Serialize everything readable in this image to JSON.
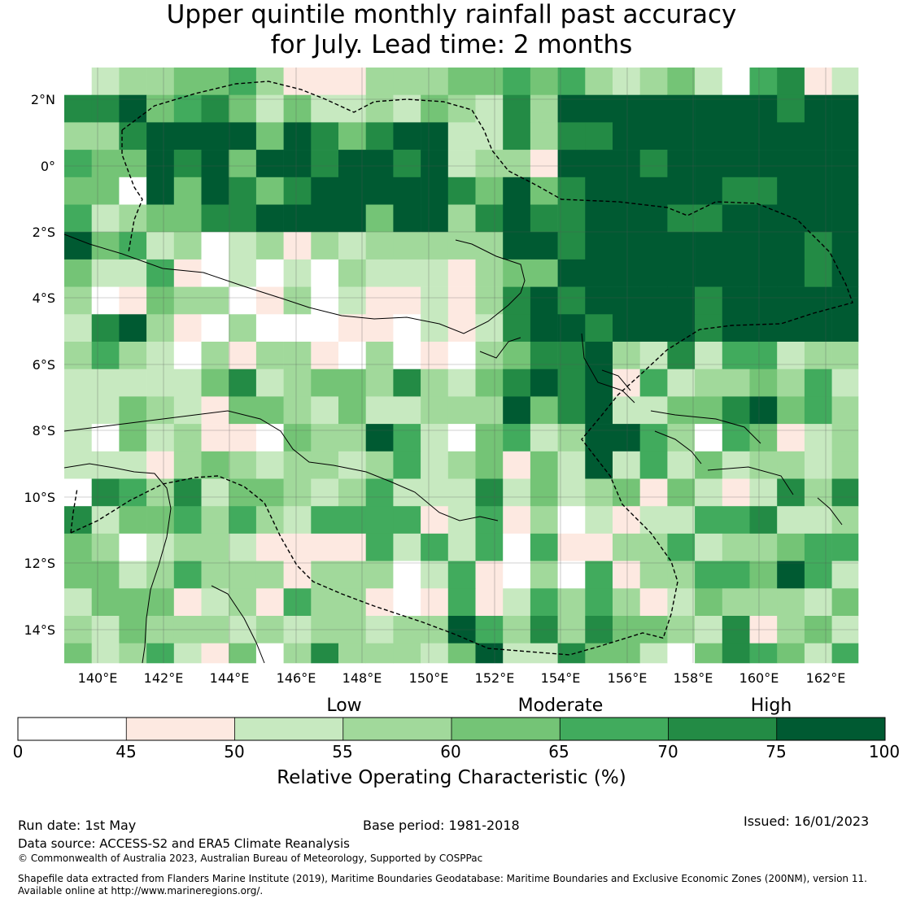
{
  "title_line1": "Upper quintile monthly rainfall past accuracy",
  "title_line2": "for July. Lead time: 2 months",
  "map": {
    "lat_labels": [
      "2°N",
      "0°",
      "2°S",
      "4°S",
      "6°S",
      "8°S",
      "10°S",
      "12°S",
      "14°S"
    ],
    "lon_labels": [
      "140°E",
      "142°E",
      "144°E",
      "146°E",
      "148°E",
      "150°E",
      "152°E",
      "154°E",
      "156°E",
      "158°E",
      "160°E",
      "162°E"
    ],
    "extent": {
      "lon_min": 139,
      "lon_max": 163,
      "lat_min": -15,
      "lat_max": 3
    },
    "boundary_style": "dashed black EEZ boundary"
  },
  "colorbar": {
    "category_labels": [
      "Low",
      "Moderate",
      "High"
    ],
    "ticks": [
      "0",
      "45",
      "50",
      "55",
      "60",
      "65",
      "70",
      "75",
      "100"
    ],
    "colors": [
      "#ffffff",
      "#fde9e1",
      "#c7e9c0",
      "#a1d99b",
      "#74c476",
      "#41ab5d",
      "#238b45",
      "#005a32"
    ],
    "title": "Relative Operating Characteristic (%)"
  },
  "footer": {
    "run_date": "Run date: 1st May",
    "base_period": "Base period: 1981-2018",
    "issued": "Issued: 16/01/2023",
    "data_source": "Data source: ACCESS-S2 and ERA5 Climate Reanalysis",
    "copyright": "© Commonwealth of Australia 2023, Australian Bureau of Meteorology, Supported by COSPPac",
    "shapefile_line1": "Shapefile data extracted from Flanders Marine Institute (2019), Maritime Boundaries Geodatabase: Maritime Boundaries and Exclusive Economic Zones (200NM), version 11.",
    "shapefile_line2": "Available online at http://www.marineregions.org/."
  }
}
